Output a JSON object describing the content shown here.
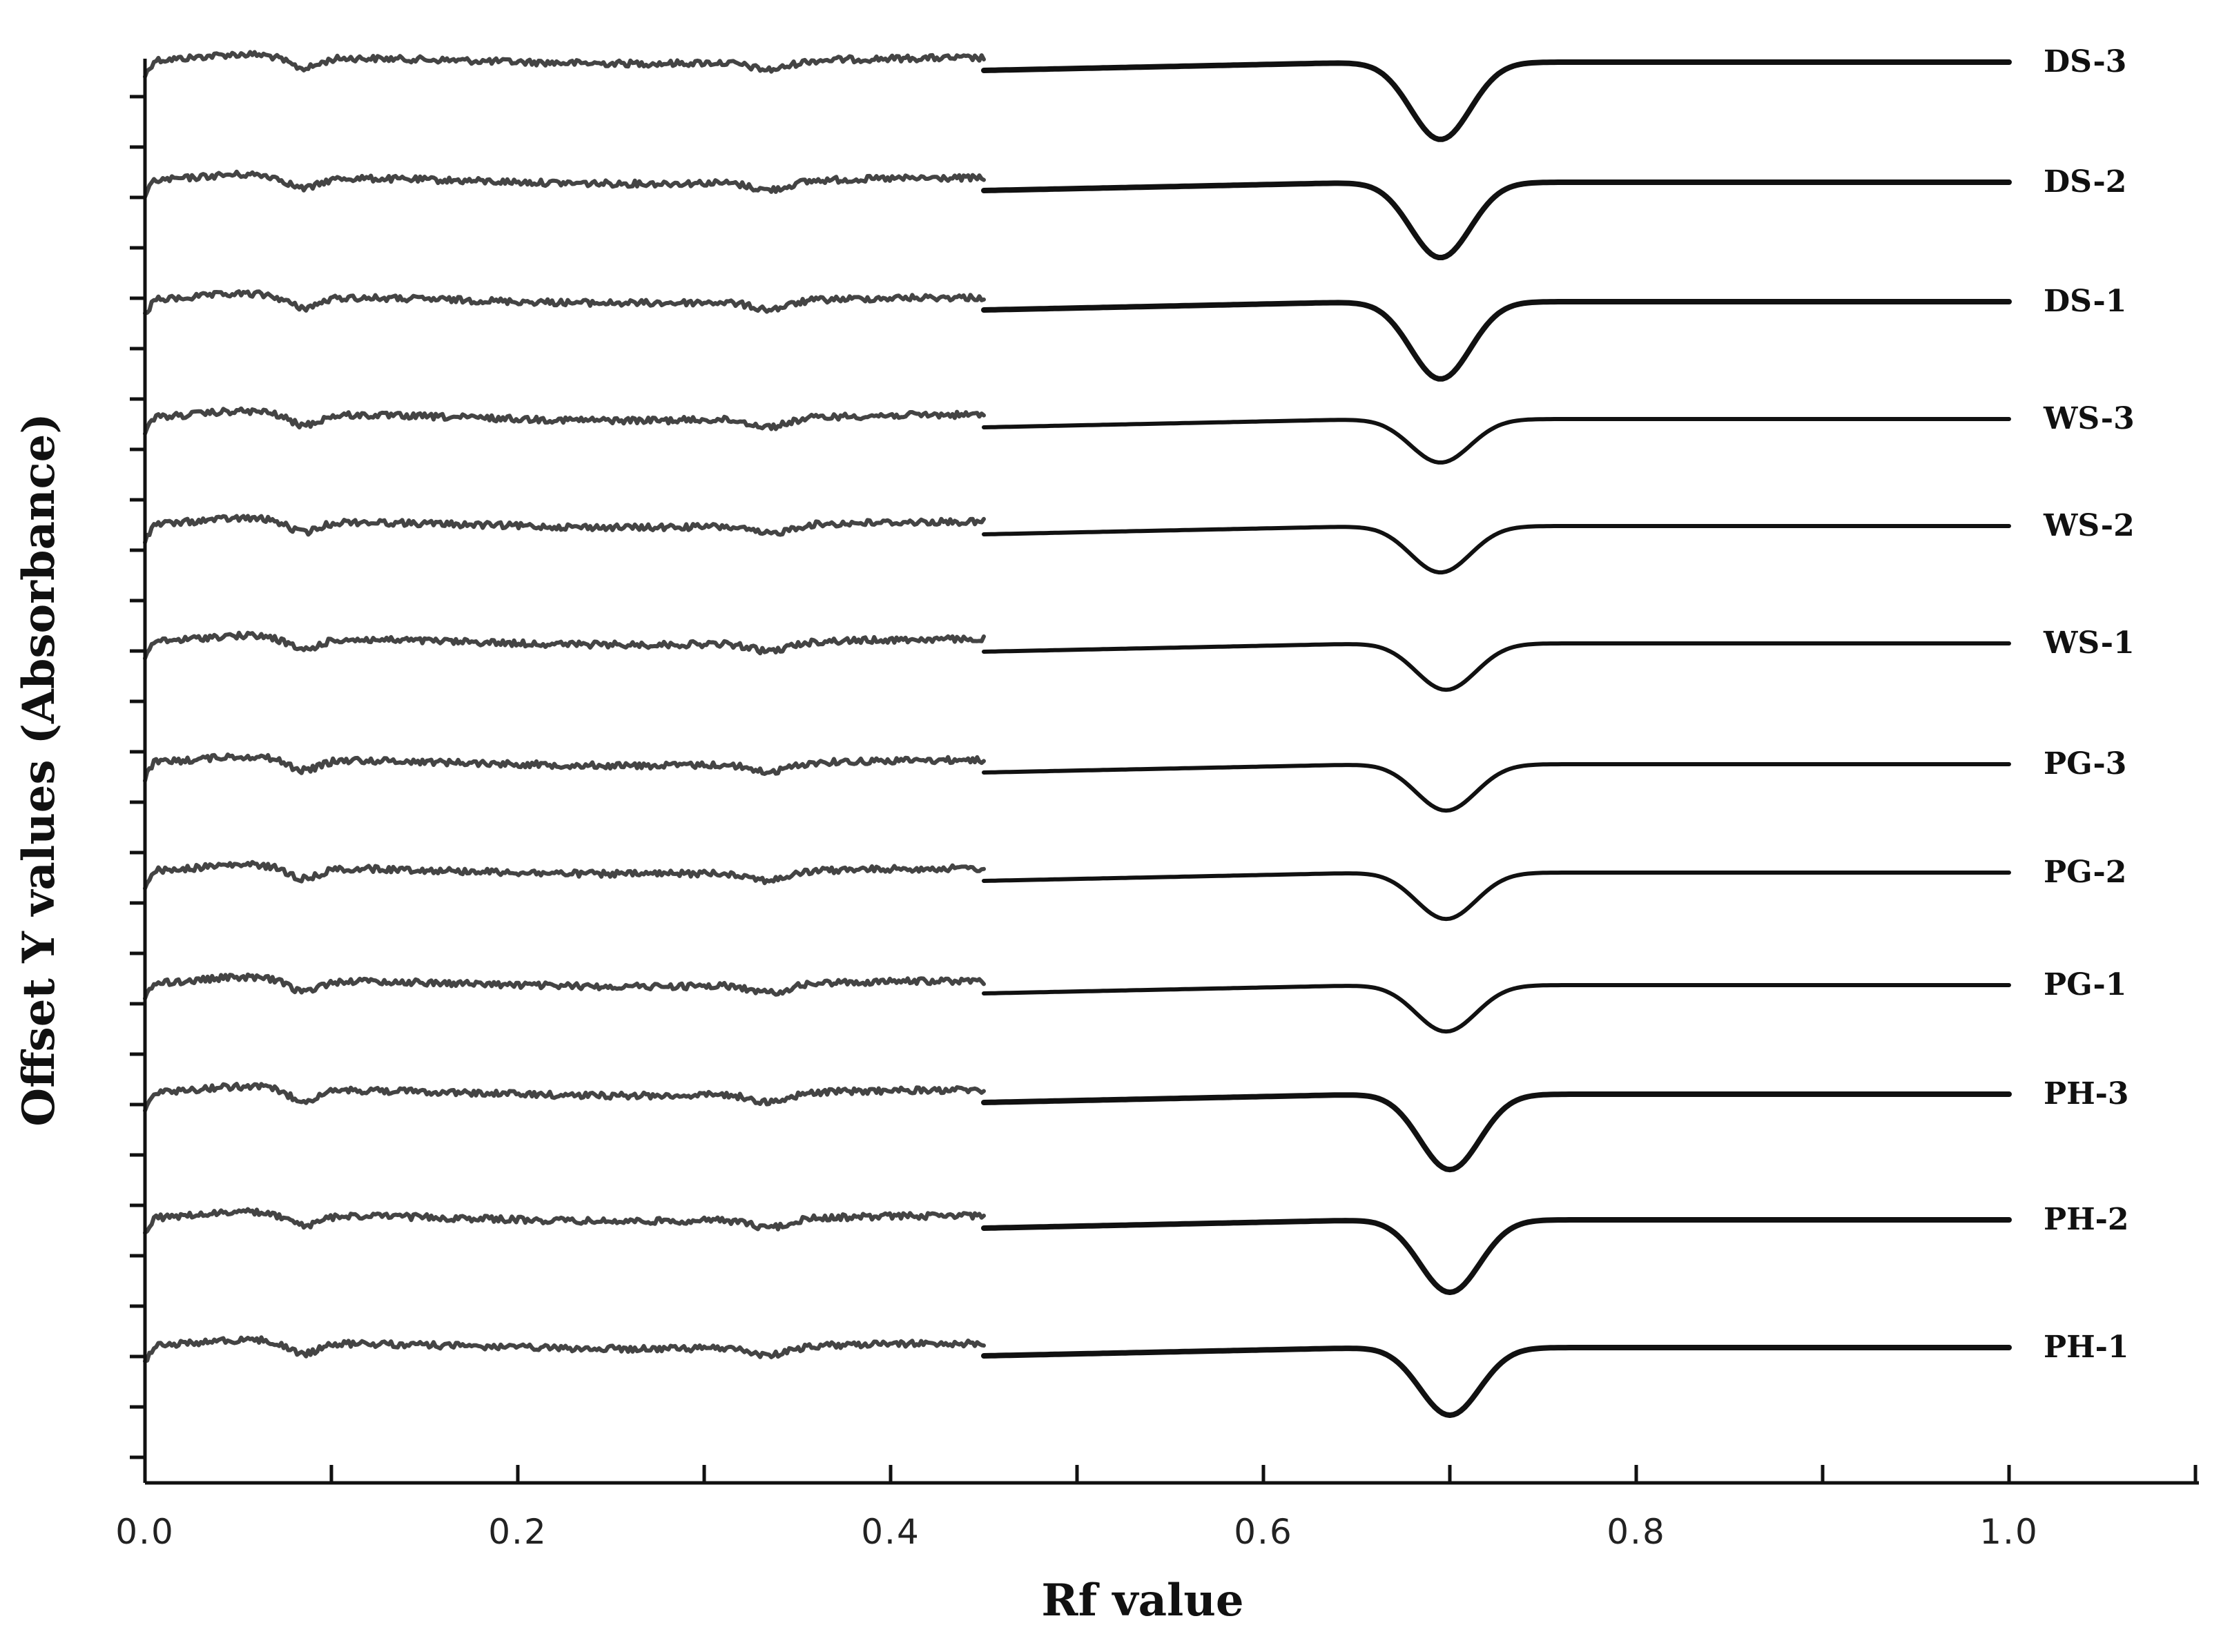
{
  "chart_data": {
    "type": "line",
    "title": "",
    "xlabel": "Rf value",
    "ylabel": "Offset Y values (Absorbance)",
    "xlim": [
      0,
      1.1
    ],
    "x_ticks": [
      "0.0",
      "0.2",
      "0.4",
      "0.6",
      "0.8",
      "1.0"
    ],
    "x_tick_values": [
      0,
      0.2,
      0.4,
      0.6,
      0.8,
      1.0
    ],
    "grid": false,
    "legend": "labels at right end of each trace",
    "line_color": "#111111",
    "noise_color": "#444444",
    "series": [
      {
        "name": "DS-3",
        "peak_rf": 0.695,
        "peak_depth": 0.8
      },
      {
        "name": "DS-2",
        "peak_rf": 0.695,
        "peak_depth": 0.78
      },
      {
        "name": "DS-1",
        "peak_rf": 0.695,
        "peak_depth": 0.8
      },
      {
        "name": "WS-3",
        "peak_rf": 0.695,
        "peak_depth": 0.45
      },
      {
        "name": "WS-2",
        "peak_rf": 0.695,
        "peak_depth": 0.48
      },
      {
        "name": "WS-1",
        "peak_rf": 0.698,
        "peak_depth": 0.48
      },
      {
        "name": "PG-3",
        "peak_rf": 0.698,
        "peak_depth": 0.48
      },
      {
        "name": "PG-2",
        "peak_rf": 0.698,
        "peak_depth": 0.48
      },
      {
        "name": "PG-1",
        "peak_rf": 0.698,
        "peak_depth": 0.48
      },
      {
        "name": "PH-3",
        "peak_rf": 0.7,
        "peak_depth": 0.78
      },
      {
        "name": "PH-2",
        "peak_rf": 0.7,
        "peak_depth": 0.75
      },
      {
        "name": "PH-1",
        "peak_rf": 0.7,
        "peak_depth": 0.7
      }
    ]
  }
}
